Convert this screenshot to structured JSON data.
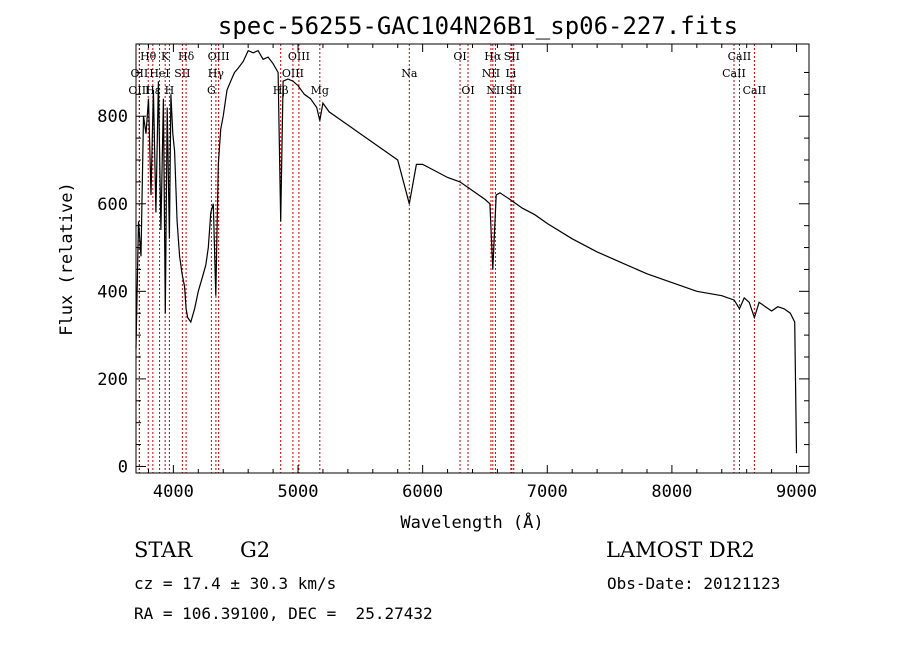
{
  "chart_data": {
    "type": "line",
    "title": "spec-56255-GAC104N26B1_sp06-227.fits",
    "xlabel": "Wavelength (Å)",
    "ylabel": "Flux (relative)",
    "xlim": [
      3700,
      9100
    ],
    "ylim": [
      -15,
      965
    ],
    "xticks": [
      4000,
      5000,
      6000,
      7000,
      8000,
      9000
    ],
    "yticks": [
      0,
      200,
      400,
      600,
      800
    ],
    "x": [
      3700,
      3720,
      3740,
      3760,
      3780,
      3800,
      3820,
      3840,
      3860,
      3880,
      3900,
      3920,
      3935,
      3950,
      3968,
      3980,
      3995,
      4010,
      4030,
      4050,
      4070,
      4090,
      4102,
      4115,
      4140,
      4170,
      4200,
      4230,
      4260,
      4280,
      4300,
      4320,
      4340,
      4360,
      4380,
      4400,
      4430,
      4460,
      4490,
      4520,
      4560,
      4600,
      4640,
      4680,
      4720,
      4760,
      4800,
      4840,
      4861,
      4880,
      4920,
      4960,
      5000,
      5050,
      5100,
      5150,
      5175,
      5200,
      5250,
      5300,
      5400,
      5500,
      5600,
      5700,
      5800,
      5893,
      5950,
      6000,
      6100,
      6200,
      6300,
      6400,
      6500,
      6540,
      6563,
      6590,
      6620,
      6700,
      6800,
      6900,
      7000,
      7200,
      7400,
      7600,
      7800,
      8000,
      8200,
      8400,
      8500,
      8542,
      8580,
      8620,
      8662,
      8700,
      8750,
      8800,
      8850,
      8900,
      8950,
      8985,
      9000
    ],
    "y": [
      270,
      560,
      480,
      800,
      760,
      840,
      620,
      860,
      580,
      880,
      540,
      840,
      350,
      820,
      520,
      850,
      760,
      720,
      560,
      480,
      440,
      410,
      360,
      340,
      330,
      360,
      400,
      430,
      460,
      500,
      580,
      600,
      390,
      690,
      770,
      800,
      860,
      880,
      900,
      910,
      925,
      950,
      945,
      950,
      930,
      935,
      920,
      900,
      560,
      880,
      885,
      880,
      870,
      850,
      840,
      820,
      790,
      830,
      810,
      800,
      780,
      760,
      740,
      720,
      700,
      600,
      690,
      690,
      675,
      660,
      650,
      630,
      610,
      600,
      450,
      620,
      625,
      610,
      590,
      575,
      555,
      520,
      490,
      465,
      440,
      420,
      400,
      390,
      380,
      360,
      385,
      375,
      340,
      375,
      365,
      355,
      365,
      360,
      350,
      330,
      30
    ],
    "grid": false,
    "spectral_lines": [
      {
        "label": "Hθ",
        "x": 3798,
        "row": 0
      },
      {
        "label": "K",
        "x": 3934,
        "row": 0
      },
      {
        "label": "Hδ",
        "x": 4102,
        "row": 0
      },
      {
        "label": "OII",
        "x": 3727,
        "row": 1
      },
      {
        "label": "HeI",
        "x": 3889,
        "row": 1
      },
      {
        "label": "SII",
        "x": 4072,
        "row": 1
      },
      {
        "label": "OIII",
        "x": 3727,
        "row": 2
      },
      {
        "label": "Hε",
        "x": 3835,
        "row": 2
      },
      {
        "label": "H",
        "x": 3968,
        "row": 2
      },
      {
        "label": "OIII",
        "x": 4363,
        "row": 0
      },
      {
        "label": "Hγ",
        "x": 4341,
        "row": 1
      },
      {
        "label": "G",
        "x": 4305,
        "row": 2
      },
      {
        "label": "OIII",
        "x": 5007,
        "row": 0
      },
      {
        "label": "OIII",
        "x": 4959,
        "row": 1
      },
      {
        "label": "Hβ",
        "x": 4861,
        "row": 2
      },
      {
        "label": "Mg",
        "x": 5175,
        "row": 2
      },
      {
        "label": "Na",
        "x": 5893,
        "row": 1
      },
      {
        "label": "OI",
        "x": 6300,
        "row": 0
      },
      {
        "label": "OI",
        "x": 6364,
        "row": 2
      },
      {
        "label": "Hα",
        "x": 6563,
        "row": 0
      },
      {
        "label": "SII",
        "x": 6716,
        "row": 0
      },
      {
        "label": "NII",
        "x": 6548,
        "row": 1
      },
      {
        "label": "Li",
        "x": 6708,
        "row": 1
      },
      {
        "label": "NII",
        "x": 6584,
        "row": 2
      },
      {
        "label": "SII",
        "x": 6731,
        "row": 2
      },
      {
        "label": "CaII",
        "x": 8542,
        "row": 0
      },
      {
        "label": "CaII",
        "x": 8498,
        "row": 1
      },
      {
        "label": "CaII",
        "x": 8662,
        "row": 2
      }
    ],
    "line_color": "#000000",
    "marker_color": "#cc0000"
  },
  "info": {
    "object_class": "STAR",
    "subclass": "G2",
    "survey": "LAMOST DR2",
    "redshift": "cz = 17.4 ± 30.3 km/s",
    "obs_date": "Obs-Date: 20121123",
    "coords": "RA = 106.39100, DEC =  25.27432"
  }
}
